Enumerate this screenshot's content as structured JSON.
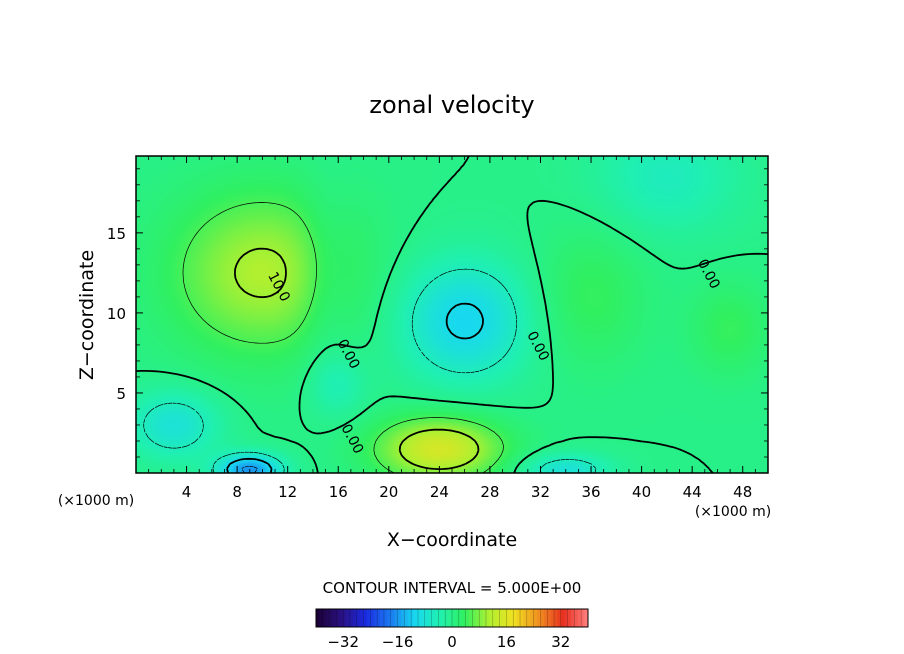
{
  "chart_data": {
    "type": "heatmap",
    "title": "zonal velocity",
    "xlabel": "X−coordinate",
    "ylabel": "Z−coordinate",
    "x_unit_left": "(×1000 m)",
    "x_unit_right": "(×1000 m)",
    "xlim": [
      0,
      50
    ],
    "ylim": [
      0,
      19.8
    ],
    "x_ticks": [
      4,
      8,
      12,
      16,
      20,
      24,
      28,
      32,
      36,
      40,
      44,
      48
    ],
    "y_ticks": [
      5,
      10,
      15
    ],
    "contour_interval_text": "CONTOUR INTERVAL = 5.000E+00",
    "contour_labels": [
      {
        "text": "10.0",
        "x": 11,
        "z": 11.5
      },
      {
        "text": "0.00",
        "x": 16.5,
        "z": 7.3
      },
      {
        "text": "0.00",
        "x": 16.8,
        "z": 2.0
      },
      {
        "text": "0.00",
        "x": 31.5,
        "z": 7.8
      },
      {
        "text": "0.00",
        "x": 45,
        "z": 12.3
      }
    ],
    "colorbar": {
      "min": -40,
      "max": 40,
      "tick_values": [
        -32,
        -16,
        0,
        16,
        32
      ],
      "tick_labels": [
        "−32",
        "−16",
        "0",
        "16",
        "32"
      ],
      "colors": [
        "#1a0033",
        "#2a1080",
        "#1a2ae0",
        "#1a7af0",
        "#18d8f0",
        "#20f0b0",
        "#30f060",
        "#b0f030",
        "#f0e020",
        "#f09020",
        "#e83020",
        "#ff8080"
      ]
    },
    "field_components": [
      {
        "x": 10,
        "z": 12.5,
        "sx": 5,
        "sz": 3.5,
        "a": 11
      },
      {
        "x": 24,
        "z": 1.5,
        "sx": 3.5,
        "sz": 1.4,
        "a": 15
      },
      {
        "x": 36,
        "z": 11,
        "sx": 3,
        "sz": 3,
        "a": 4
      },
      {
        "x": 26,
        "z": 9.5,
        "sx": 3.5,
        "sz": 2.6,
        "a": -11
      },
      {
        "x": 3,
        "z": 3,
        "sx": 2.5,
        "sz": 1.5,
        "a": -8
      },
      {
        "x": 9,
        "z": 0.2,
        "sx": 1.8,
        "sz": 0.7,
        "a": -16
      },
      {
        "x": 34,
        "z": 0.2,
        "sx": 2.5,
        "sz": 0.7,
        "a": -8
      },
      {
        "x": 42,
        "z": 18.5,
        "sx": 4,
        "sz": 2.5,
        "a": -5
      },
      {
        "x": 16,
        "z": 5.5,
        "sx": 1.6,
        "sz": 1.4,
        "a": -4
      },
      {
        "x": 15,
        "z": 12,
        "sx": 1.4,
        "sz": 4,
        "a": -3
      },
      {
        "x": 47,
        "z": 9,
        "sx": 2.2,
        "sz": 2,
        "a": 4
      }
    ]
  }
}
